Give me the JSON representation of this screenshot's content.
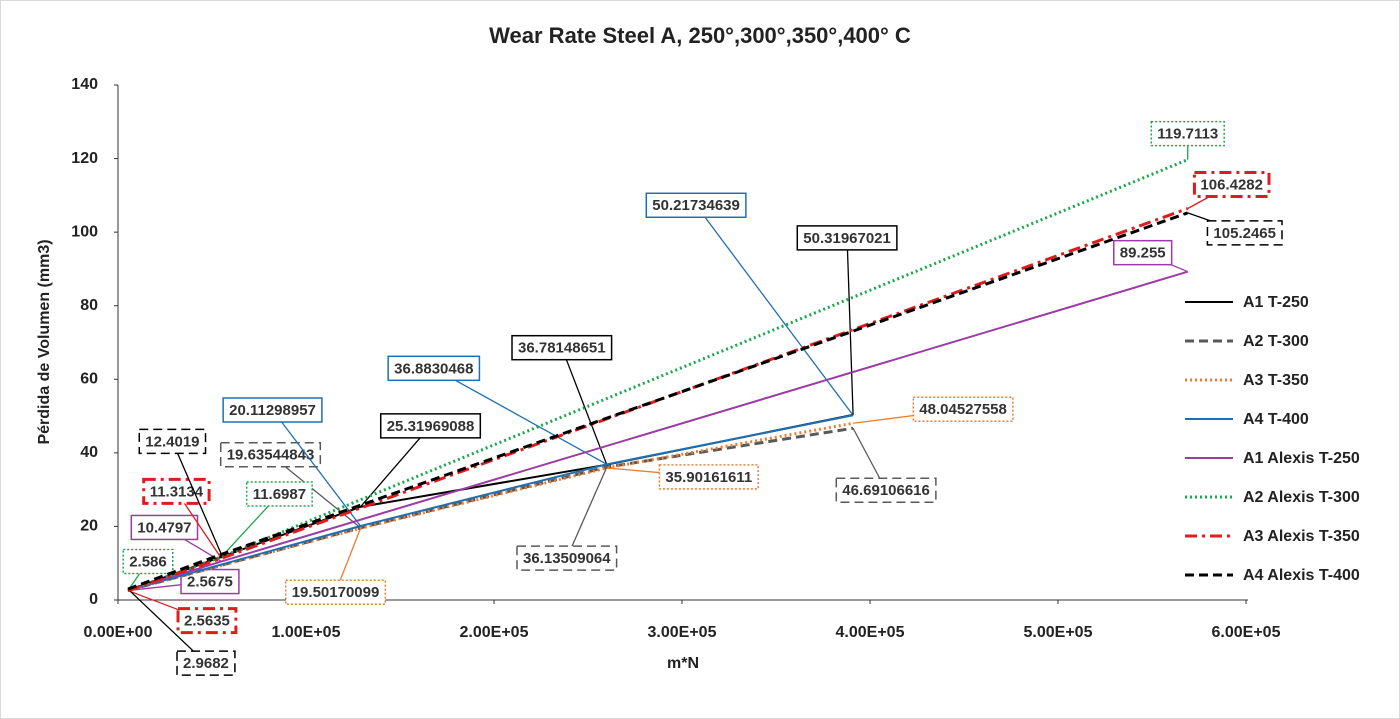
{
  "chart_data": {
    "type": "line",
    "title": "Wear Rate Steel A, 250°,300°,350°,400° C",
    "x_label": "m*N",
    "y_label": "Pérdida de Volumen (mm3)",
    "xlim": [
      0,
      600000
    ],
    "xticks": [
      {
        "value": 0,
        "label": "0.00E+00"
      },
      {
        "value": 100000,
        "label": "1.00E+05"
      },
      {
        "value": 200000,
        "label": "2.00E+05"
      },
      {
        "value": 300000,
        "label": "3.00E+05"
      },
      {
        "value": 400000,
        "label": "4.00E+05"
      },
      {
        "value": 500000,
        "label": "5.00E+05"
      },
      {
        "value": 600000,
        "label": "6.00E+05"
      }
    ],
    "ylim": [
      0,
      140
    ],
    "yticks": [
      0,
      20,
      40,
      60,
      80,
      100,
      120,
      140
    ],
    "grid": false,
    "legend": "right",
    "series": [
      {
        "name": "A1 T-250",
        "color": "#000000",
        "dash": "solid",
        "x": [
          5300,
          129000,
          260000,
          391000
        ],
        "values": [
          2.6,
          25.31969088,
          36.78148651,
          50.31967021
        ],
        "show_labels": [
          false,
          true,
          true,
          true
        ]
      },
      {
        "name": "A2 T-300",
        "color": "#595959",
        "dash": "dashed",
        "x": [
          5300,
          129000,
          260000,
          391000
        ],
        "values": [
          2.6,
          19.63544843,
          36.13509064,
          46.69106616
        ],
        "show_labels": [
          false,
          true,
          true,
          true
        ]
      },
      {
        "name": "A3 T-350",
        "color": "#ed7d31",
        "dash": "dotted",
        "x": [
          5300,
          129000,
          260000,
          391000
        ],
        "values": [
          2.6,
          19.50170099,
          35.90161611,
          48.04527558
        ],
        "show_labels": [
          false,
          true,
          true,
          true
        ]
      },
      {
        "name": "A4 T-400",
        "color": "#1f6fb4",
        "dash": "solid",
        "x": [
          5300,
          129000,
          260000,
          391000
        ],
        "values": [
          2.6,
          20.11298957,
          36.8830468,
          50.21734639
        ],
        "show_labels": [
          false,
          true,
          true,
          true
        ]
      },
      {
        "name": "A1 Alexis T-250",
        "color": "#9b3ba6",
        "dash": "solid",
        "x": [
          5300,
          55000,
          569000
        ],
        "values": [
          2.5675,
          10.4797,
          89.255
        ],
        "show_labels": [
          true,
          true,
          true
        ]
      },
      {
        "name": "A2 Alexis T-300",
        "color": "#1aa84a",
        "dash": "dotted",
        "x": [
          5300,
          55000,
          569000
        ],
        "values": [
          2.586,
          11.6987,
          119.7113
        ],
        "show_labels": [
          true,
          true,
          true
        ]
      },
      {
        "name": "A3 Alexis T-350",
        "color": "#e01b1b",
        "dash": "dashdot",
        "x": [
          5300,
          55000,
          569000
        ],
        "values": [
          2.5635,
          11.3134,
          106.4282
        ],
        "show_labels": [
          true,
          true,
          true
        ]
      },
      {
        "name": "A4 Alexis T-400",
        "color": "#000000",
        "dash": "dashed",
        "x": [
          5300,
          55000,
          569000
        ],
        "values": [
          2.9682,
          12.4019,
          105.2465
        ],
        "show_labels": [
          true,
          true,
          true
        ]
      }
    ]
  }
}
